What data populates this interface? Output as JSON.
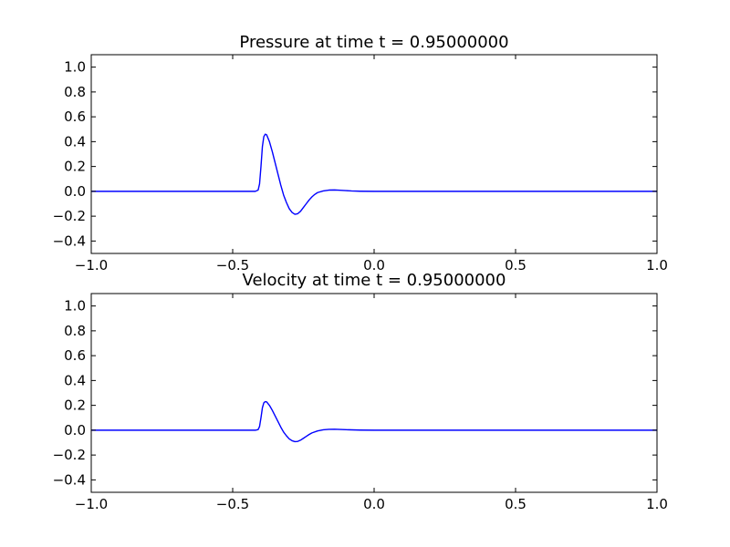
{
  "chart_data": [
    {
      "type": "line",
      "title": "Pressure at time t =     0.95000000",
      "xlabel": "",
      "ylabel": "",
      "xlim": [
        -1.0,
        1.0
      ],
      "ylim": [
        -0.5,
        1.1
      ],
      "xticks": [
        -1.0,
        -0.5,
        0.0,
        0.5,
        1.0
      ],
      "xtick_labels": [
        "−1.0",
        "−0.5",
        "0.0",
        "0.5",
        "1.0"
      ],
      "yticks": [
        -0.4,
        -0.2,
        0.0,
        0.2,
        0.4,
        0.6,
        0.8,
        1.0
      ],
      "ytick_labels": [
        "−0.4",
        "−0.2",
        "0.0",
        "0.2",
        "0.4",
        "0.6",
        "0.8",
        "1.0"
      ],
      "grid": false,
      "series": [
        {
          "color": "#0000ff",
          "x": [
            -1.0,
            -0.6,
            -0.42,
            -0.41,
            -0.405,
            -0.4,
            -0.395,
            -0.39,
            -0.385,
            -0.38,
            -0.37,
            -0.36,
            -0.35,
            -0.34,
            -0.33,
            -0.32,
            -0.31,
            -0.3,
            -0.29,
            -0.28,
            -0.27,
            -0.26,
            -0.25,
            -0.24,
            -0.23,
            -0.22,
            -0.21,
            -0.2,
            -0.18,
            -0.16,
            -0.14,
            -0.12,
            -0.1,
            -0.08,
            -0.05,
            0.0,
            0.5,
            1.0
          ],
          "y": [
            0.0,
            0.0,
            0.0,
            0.01,
            0.06,
            0.2,
            0.36,
            0.44,
            0.46,
            0.455,
            0.4,
            0.32,
            0.23,
            0.14,
            0.05,
            -0.03,
            -0.09,
            -0.14,
            -0.17,
            -0.185,
            -0.18,
            -0.16,
            -0.13,
            -0.1,
            -0.07,
            -0.045,
            -0.025,
            -0.01,
            0.003,
            0.01,
            0.011,
            0.009,
            0.006,
            0.003,
            0.001,
            0.0,
            0.0,
            0.0
          ]
        }
      ]
    },
    {
      "type": "line",
      "title": "Velocity at time t =     0.95000000",
      "xlabel": "",
      "ylabel": "",
      "xlim": [
        -1.0,
        1.0
      ],
      "ylim": [
        -0.5,
        1.1
      ],
      "xticks": [
        -1.0,
        -0.5,
        0.0,
        0.5,
        1.0
      ],
      "xtick_labels": [
        "−1.0",
        "−0.5",
        "0.0",
        "0.5",
        "1.0"
      ],
      "yticks": [
        -0.4,
        -0.2,
        0.0,
        0.2,
        0.4,
        0.6,
        0.8,
        1.0
      ],
      "ytick_labels": [
        "−0.4",
        "−0.2",
        "0.0",
        "0.2",
        "0.4",
        "0.6",
        "0.8",
        "1.0"
      ],
      "grid": false,
      "series": [
        {
          "color": "#0000ff",
          "x": [
            -1.0,
            -0.6,
            -0.42,
            -0.41,
            -0.405,
            -0.4,
            -0.395,
            -0.39,
            -0.385,
            -0.38,
            -0.37,
            -0.36,
            -0.35,
            -0.34,
            -0.33,
            -0.32,
            -0.31,
            -0.3,
            -0.29,
            -0.28,
            -0.27,
            -0.26,
            -0.25,
            -0.24,
            -0.23,
            -0.22,
            -0.2,
            -0.18,
            -0.16,
            -0.14,
            -0.12,
            -0.1,
            -0.05,
            0.0,
            0.5,
            1.0
          ],
          "y": [
            0.0,
            0.0,
            0.0,
            0.005,
            0.03,
            0.1,
            0.18,
            0.22,
            0.23,
            0.228,
            0.2,
            0.16,
            0.115,
            0.07,
            0.025,
            -0.015,
            -0.045,
            -0.07,
            -0.085,
            -0.092,
            -0.09,
            -0.08,
            -0.065,
            -0.05,
            -0.035,
            -0.022,
            -0.006,
            0.003,
            0.007,
            0.008,
            0.006,
            0.004,
            0.001,
            0.0,
            0.0,
            0.0
          ]
        }
      ]
    }
  ]
}
